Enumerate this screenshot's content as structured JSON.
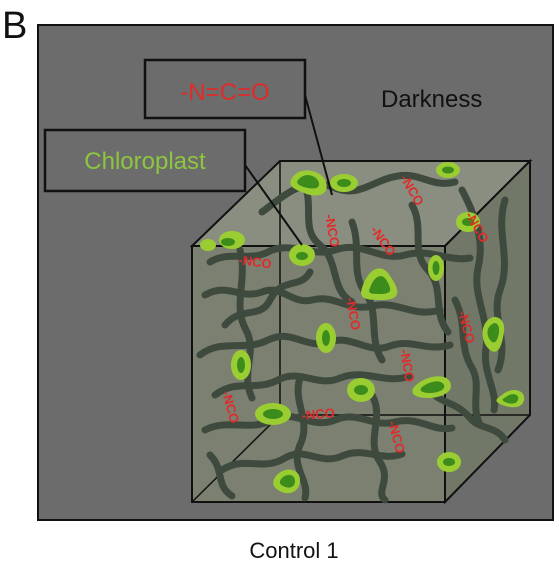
{
  "panel_letter": "B",
  "labels": {
    "darkness": "Darkness",
    "caption": "Control 1",
    "nco_formula": "-N=C=O",
    "chloroplast": "Chloroplast",
    "nco_group": "-NCO"
  },
  "colors": {
    "background_panel": "#6c6c6c",
    "cube_front": "#7b8071",
    "cube_top": "#8a8e80",
    "cube_side": "#727868",
    "fiber": "#3f4a3f",
    "chloroplast_outer": "#9acd32",
    "chloroplast_inner": "#3c8c1c",
    "nco_text": "#e02b2b",
    "chloroplast_label": "#8dc63f"
  }
}
